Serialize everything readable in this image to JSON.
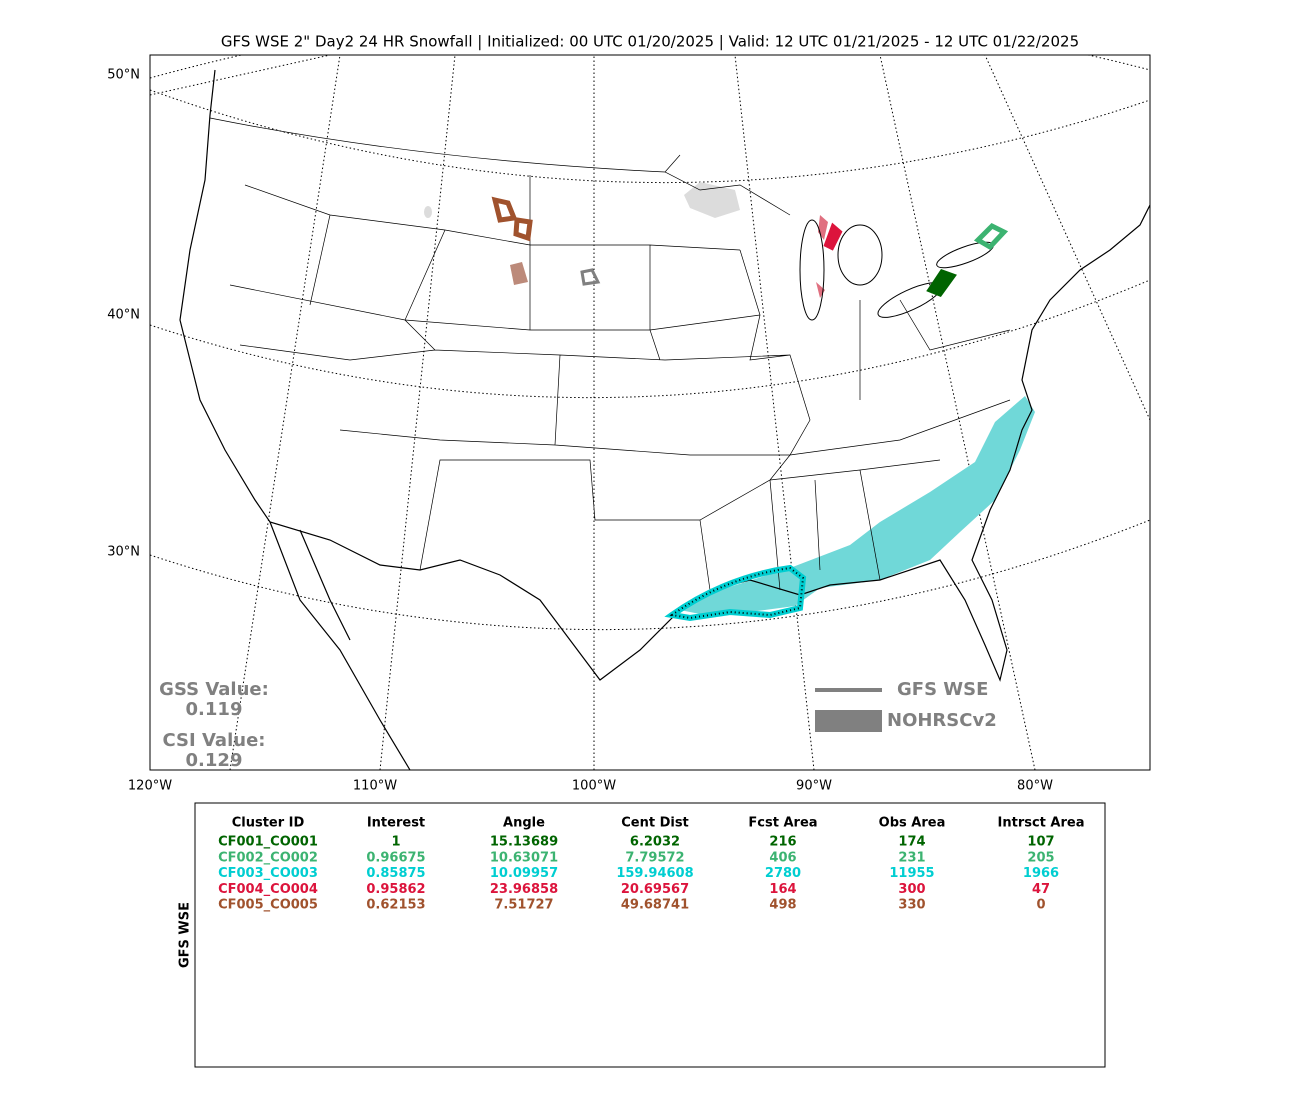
{
  "title": "GFS WSE 2\" Day2 24 HR Snowfall | Initialized: 00 UTC 01/20/2025 | Valid: 12 UTC 01/21/2025 - 12 UTC 01/22/2025",
  "map": {
    "lat_labels": [
      "50°N",
      "40°N",
      "30°N"
    ],
    "lon_labels": [
      "120°W",
      "110°W",
      "100°W",
      "90°W",
      "80°W"
    ],
    "gss_label": "GSS Value:",
    "gss_value": "0.119",
    "csi_label": "CSI Value:",
    "csi_value": "0.129",
    "legend": [
      {
        "label": "GFS WSE",
        "color": "#808080"
      },
      {
        "label": "NOHRSCv2",
        "color": "#808080"
      }
    ]
  },
  "table": {
    "side_label": "GFS WSE",
    "columns": [
      "Cluster ID",
      "Interest",
      "Angle",
      "Cent Dist",
      "Fcst Area",
      "Obs Area",
      "Intrsct Area"
    ],
    "rows": [
      {
        "color": "#006400",
        "cells": [
          "CF001_CO001",
          1,
          15.13689,
          6.2032,
          216,
          174,
          107
        ]
      },
      {
        "color": "#3cb371",
        "cells": [
          "CF002_CO002",
          0.96675,
          10.63071,
          7.79572,
          406,
          231,
          205
        ]
      },
      {
        "color": "#00ced1",
        "cells": [
          "CF003_CO003",
          0.85875,
          10.09957,
          159.94608,
          2780,
          11955,
          1966
        ]
      },
      {
        "color": "#dc143c",
        "cells": [
          "CF004_CO004",
          0.95862,
          23.96858,
          20.69567,
          164,
          300,
          47
        ]
      },
      {
        "color": "#a0522d",
        "cells": [
          "CF005_CO005",
          0.62153,
          7.51727,
          49.68741,
          498,
          330,
          0
        ]
      }
    ]
  }
}
